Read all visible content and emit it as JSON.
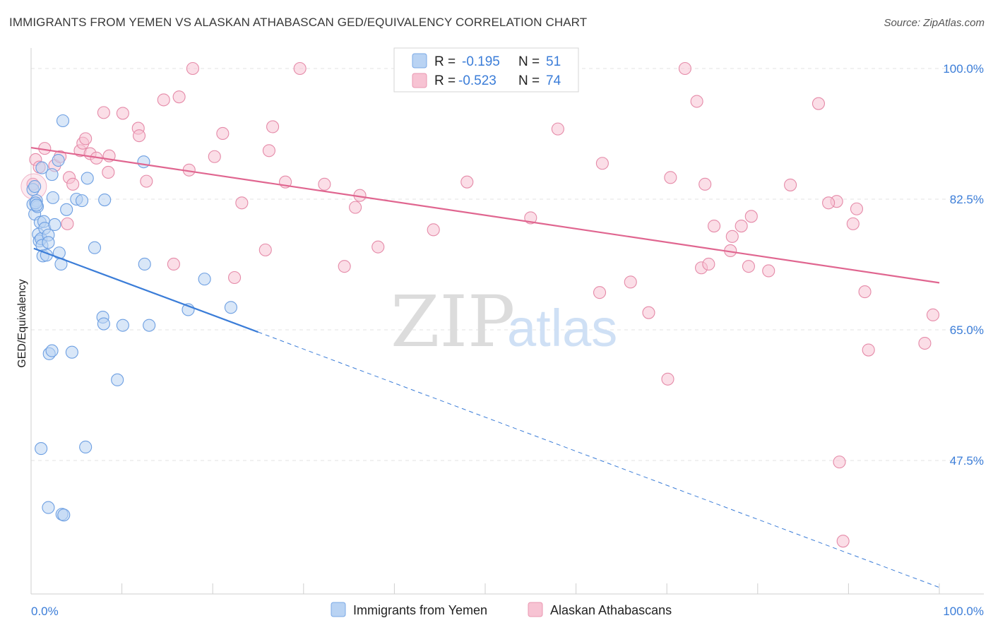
{
  "title": "IMMIGRANTS FROM YEMEN VS ALASKAN ATHABASCAN GED/EQUIVALENCY CORRELATION CHART",
  "source": "Source: ZipAtlas.com",
  "watermark": {
    "zip": "ZIP",
    "atlas": "atlas"
  },
  "colors": {
    "blue": "#3b7dd8",
    "blue_fill": "#b9d3f3",
    "pink": "#e06690",
    "pink_fill": "#f7c3d3",
    "grid": "#e3e3e3"
  },
  "legend": {
    "series": [
      {
        "r_label": "R =",
        "r_value": "-0.195",
        "n_label": "N =",
        "n_value": "51"
      },
      {
        "r_label": "R =",
        "r_value": "-0.523",
        "n_label": "N =",
        "n_value": "74"
      }
    ]
  },
  "chart_data": {
    "type": "scatter",
    "xlabel": "",
    "ylabel": "GED/Equivalency",
    "xlim": [
      0,
      100
    ],
    "ylim": [
      31,
      102
    ],
    "x_tick_labels": [
      "0.0%",
      "100.0%"
    ],
    "y_ticks": [
      47.5,
      65.0,
      82.5,
      100.0
    ],
    "y_tick_labels": [
      "47.5%",
      "65.0%",
      "82.5%",
      "100.0%"
    ],
    "series": [
      {
        "name": "Immigrants from Yemen",
        "trend": {
          "x0": 0.3,
          "y0": 75.9,
          "x1": 25.0,
          "y1": 64.7,
          "dash_x1": 100,
          "dash_y1": 30.5
        },
        "points": [
          [
            0.2,
            83.8
          ],
          [
            0.2,
            81.8
          ],
          [
            0.4,
            80.5
          ],
          [
            0.6,
            82.3
          ],
          [
            0.7,
            81.5
          ],
          [
            0.8,
            77.8
          ],
          [
            0.9,
            76.9
          ],
          [
            1.0,
            79.4
          ],
          [
            1.1,
            77.2
          ],
          [
            1.2,
            76.3
          ],
          [
            1.3,
            74.9
          ],
          [
            1.4,
            79.5
          ],
          [
            1.5,
            78.6
          ],
          [
            1.7,
            75.0
          ],
          [
            1.9,
            77.7
          ],
          [
            1.9,
            76.7
          ],
          [
            1.2,
            86.7
          ],
          [
            2.3,
            85.8
          ],
          [
            2.4,
            82.7
          ],
          [
            2.6,
            79.1
          ],
          [
            3.0,
            87.7
          ],
          [
            3.1,
            75.3
          ],
          [
            3.3,
            73.8
          ],
          [
            3.5,
            93.0
          ],
          [
            3.9,
            81.1
          ],
          [
            4.5,
            62.0
          ],
          [
            2.0,
            61.8
          ],
          [
            2.3,
            62.2
          ],
          [
            1.9,
            41.2
          ],
          [
            3.4,
            40.3
          ],
          [
            3.6,
            40.2
          ],
          [
            5.0,
            82.5
          ],
          [
            5.6,
            82.3
          ],
          [
            6.2,
            85.3
          ],
          [
            7.0,
            76.0
          ],
          [
            7.9,
            66.7
          ],
          [
            8.0,
            65.8
          ],
          [
            8.1,
            82.4
          ],
          [
            9.5,
            58.3
          ],
          [
            10.1,
            65.6
          ],
          [
            12.4,
            87.5
          ],
          [
            12.5,
            73.8
          ],
          [
            13.0,
            65.6
          ],
          [
            17.3,
            67.7
          ],
          [
            19.1,
            71.8
          ],
          [
            22.0,
            68.0
          ],
          [
            1.1,
            49.1
          ],
          [
            6.0,
            49.3
          ],
          [
            0.4,
            84.2
          ],
          [
            0.5,
            82.0
          ],
          [
            0.6,
            81.7
          ]
        ]
      },
      {
        "name": "Alaskan Athabascans",
        "trend": {
          "x0": 0.0,
          "y0": 89.4,
          "x1": 100.0,
          "y1": 71.3
        },
        "points": [
          [
            0.2,
            84.5
          ],
          [
            0.5,
            87.8
          ],
          [
            0.9,
            86.8
          ],
          [
            1.5,
            89.3
          ],
          [
            2.6,
            87.0
          ],
          [
            3.2,
            88.2
          ],
          [
            4.0,
            79.2
          ],
          [
            4.2,
            85.4
          ],
          [
            4.6,
            84.5
          ],
          [
            5.4,
            89.0
          ],
          [
            5.7,
            90.0
          ],
          [
            6.0,
            90.6
          ],
          [
            6.5,
            88.6
          ],
          [
            7.2,
            88.0
          ],
          [
            8.0,
            94.1
          ],
          [
            8.5,
            86.1
          ],
          [
            8.6,
            88.3
          ],
          [
            10.1,
            94.0
          ],
          [
            11.8,
            92.0
          ],
          [
            11.9,
            91.0
          ],
          [
            12.7,
            84.9
          ],
          [
            14.6,
            95.8
          ],
          [
            15.7,
            73.8
          ],
          [
            16.3,
            96.2
          ],
          [
            17.4,
            86.4
          ],
          [
            17.8,
            100.0
          ],
          [
            20.2,
            88.2
          ],
          [
            21.1,
            91.3
          ],
          [
            22.4,
            72.0
          ],
          [
            23.2,
            82.0
          ],
          [
            25.8,
            75.7
          ],
          [
            26.2,
            89.0
          ],
          [
            26.6,
            92.2
          ],
          [
            28.0,
            84.8
          ],
          [
            29.6,
            100.0
          ],
          [
            32.3,
            84.5
          ],
          [
            34.5,
            73.5
          ],
          [
            35.7,
            81.4
          ],
          [
            36.2,
            83.0
          ],
          [
            38.2,
            76.1
          ],
          [
            44.3,
            78.4
          ],
          [
            48.0,
            84.8
          ],
          [
            58.0,
            91.9
          ],
          [
            62.6,
            70.0
          ],
          [
            62.9,
            87.3
          ],
          [
            66.0,
            71.4
          ],
          [
            68.0,
            67.3
          ],
          [
            70.1,
            58.4
          ],
          [
            70.4,
            85.4
          ],
          [
            72.0,
            100.0
          ],
          [
            73.3,
            95.6
          ],
          [
            73.8,
            73.3
          ],
          [
            74.2,
            84.5
          ],
          [
            74.6,
            73.8
          ],
          [
            75.2,
            78.9
          ],
          [
            77.0,
            75.6
          ],
          [
            77.2,
            77.5
          ],
          [
            78.2,
            78.9
          ],
          [
            79.0,
            73.5
          ],
          [
            79.3,
            80.2
          ],
          [
            81.2,
            72.9
          ],
          [
            83.6,
            84.4
          ],
          [
            86.7,
            95.3
          ],
          [
            88.7,
            82.2
          ],
          [
            89.0,
            47.3
          ],
          [
            89.4,
            36.7
          ],
          [
            90.5,
            79.2
          ],
          [
            90.9,
            81.2
          ],
          [
            91.8,
            70.1
          ],
          [
            92.2,
            62.3
          ],
          [
            98.4,
            63.2
          ],
          [
            99.3,
            67.0
          ],
          [
            87.8,
            82.0
          ],
          [
            55.0,
            80.0
          ]
        ]
      }
    ]
  }
}
